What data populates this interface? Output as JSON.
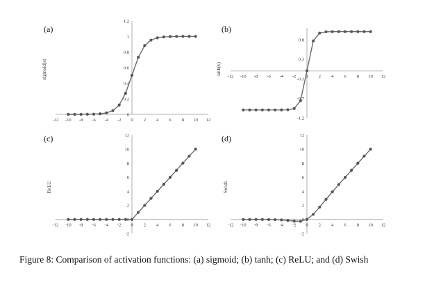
{
  "chart_data": [
    {
      "type": "line",
      "panel_label": "(a)",
      "ylabel": "sigmoid(x)",
      "x_ticks": [
        "-12",
        "-10",
        "-8",
        "-6",
        "-4",
        "-2",
        "0",
        "2",
        "4",
        "6",
        "8",
        "10",
        "12"
      ],
      "y_ticks": [
        "0",
        "0.2",
        "0.4",
        "0.6",
        "0.8",
        "1",
        "1.2"
      ],
      "xlim": [
        -12,
        12
      ],
      "ylim": [
        0,
        1.2
      ],
      "x": [
        -10,
        -9,
        -8,
        -7,
        -6,
        -5,
        -4,
        -3,
        -2,
        -1,
        0,
        1,
        2,
        3,
        4,
        5,
        6,
        7,
        8,
        9,
        10
      ],
      "y": [
        5e-05,
        0.0001,
        0.0003,
        0.0009,
        0.0025,
        0.0067,
        0.018,
        0.047,
        0.119,
        0.269,
        0.5,
        0.731,
        0.881,
        0.953,
        0.982,
        0.993,
        0.998,
        0.999,
        1.0,
        1.0,
        1.0
      ]
    },
    {
      "type": "line",
      "panel_label": "(b)",
      "ylabel": "tanh(x)",
      "x_ticks": [
        "-12",
        "-10",
        "-8",
        "-6",
        "-4",
        "-2",
        "0",
        "2",
        "4",
        "6",
        "8",
        "10",
        "12"
      ],
      "y_ticks": [
        "-1.2",
        "-0.7",
        "-0.2",
        "0.3",
        "0.8"
      ],
      "xlim": [
        -12,
        12
      ],
      "ylim": [
        -1.2,
        1.1
      ],
      "x": [
        -10,
        -9,
        -8,
        -7,
        -6,
        -5,
        -4,
        -3,
        -2,
        -1,
        0,
        1,
        2,
        3,
        4,
        5,
        6,
        7,
        8,
        9,
        10
      ],
      "y": [
        -1,
        -1,
        -1,
        -1,
        -1,
        -1,
        -0.999,
        -0.995,
        -0.964,
        -0.762,
        0,
        0.762,
        0.964,
        0.995,
        0.999,
        1,
        1,
        1,
        1,
        1,
        1
      ]
    },
    {
      "type": "line",
      "panel_label": "(c)",
      "ylabel": "ReLU",
      "x_ticks": [
        "-12",
        "-10",
        "-8",
        "-6",
        "-4",
        "-2",
        "0",
        "2",
        "4",
        "6",
        "8",
        "10",
        "12"
      ],
      "y_ticks": [
        "-2",
        "0",
        "2",
        "4",
        "6",
        "8",
        "10",
        "12"
      ],
      "xlim": [
        -12,
        12
      ],
      "ylim": [
        -2,
        12
      ],
      "x": [
        -10,
        -9,
        -8,
        -7,
        -6,
        -5,
        -4,
        -3,
        -2,
        -1,
        0,
        1,
        2,
        3,
        4,
        5,
        6,
        7,
        8,
        9,
        10
      ],
      "y": [
        0,
        0,
        0,
        0,
        0,
        0,
        0,
        0,
        0,
        0,
        0,
        1,
        2,
        3,
        4,
        5,
        6,
        7,
        8,
        9,
        10
      ]
    },
    {
      "type": "line",
      "panel_label": "(d)",
      "ylabel": "Swish",
      "x_ticks": [
        "-12",
        "-10",
        "-8",
        "-6",
        "-4",
        "-2",
        "0",
        "2",
        "4",
        "6",
        "8",
        "10",
        "12"
      ],
      "y_ticks": [
        "-2",
        "0",
        "2",
        "4",
        "6",
        "8",
        "10",
        "12"
      ],
      "xlim": [
        -12,
        12
      ],
      "ylim": [
        -2,
        12
      ],
      "x": [
        -10,
        -9,
        -8,
        -7,
        -6,
        -5,
        -4,
        -3,
        -2,
        -1,
        0,
        1,
        2,
        3,
        4,
        5,
        6,
        7,
        8,
        9,
        10
      ],
      "y": [
        -0.0005,
        -0.001,
        -0.003,
        -0.006,
        -0.015,
        -0.033,
        -0.072,
        -0.142,
        -0.238,
        -0.269,
        0,
        0.731,
        1.762,
        2.858,
        3.928,
        4.967,
        5.985,
        6.994,
        7.997,
        8.999,
        9.9995
      ]
    }
  ],
  "caption": {
    "label": "Figure 8: ",
    "text": "Comparison of activation functions: (a) sigmoid; (b) tanh; (c) ReLU; and (d) Swish"
  }
}
